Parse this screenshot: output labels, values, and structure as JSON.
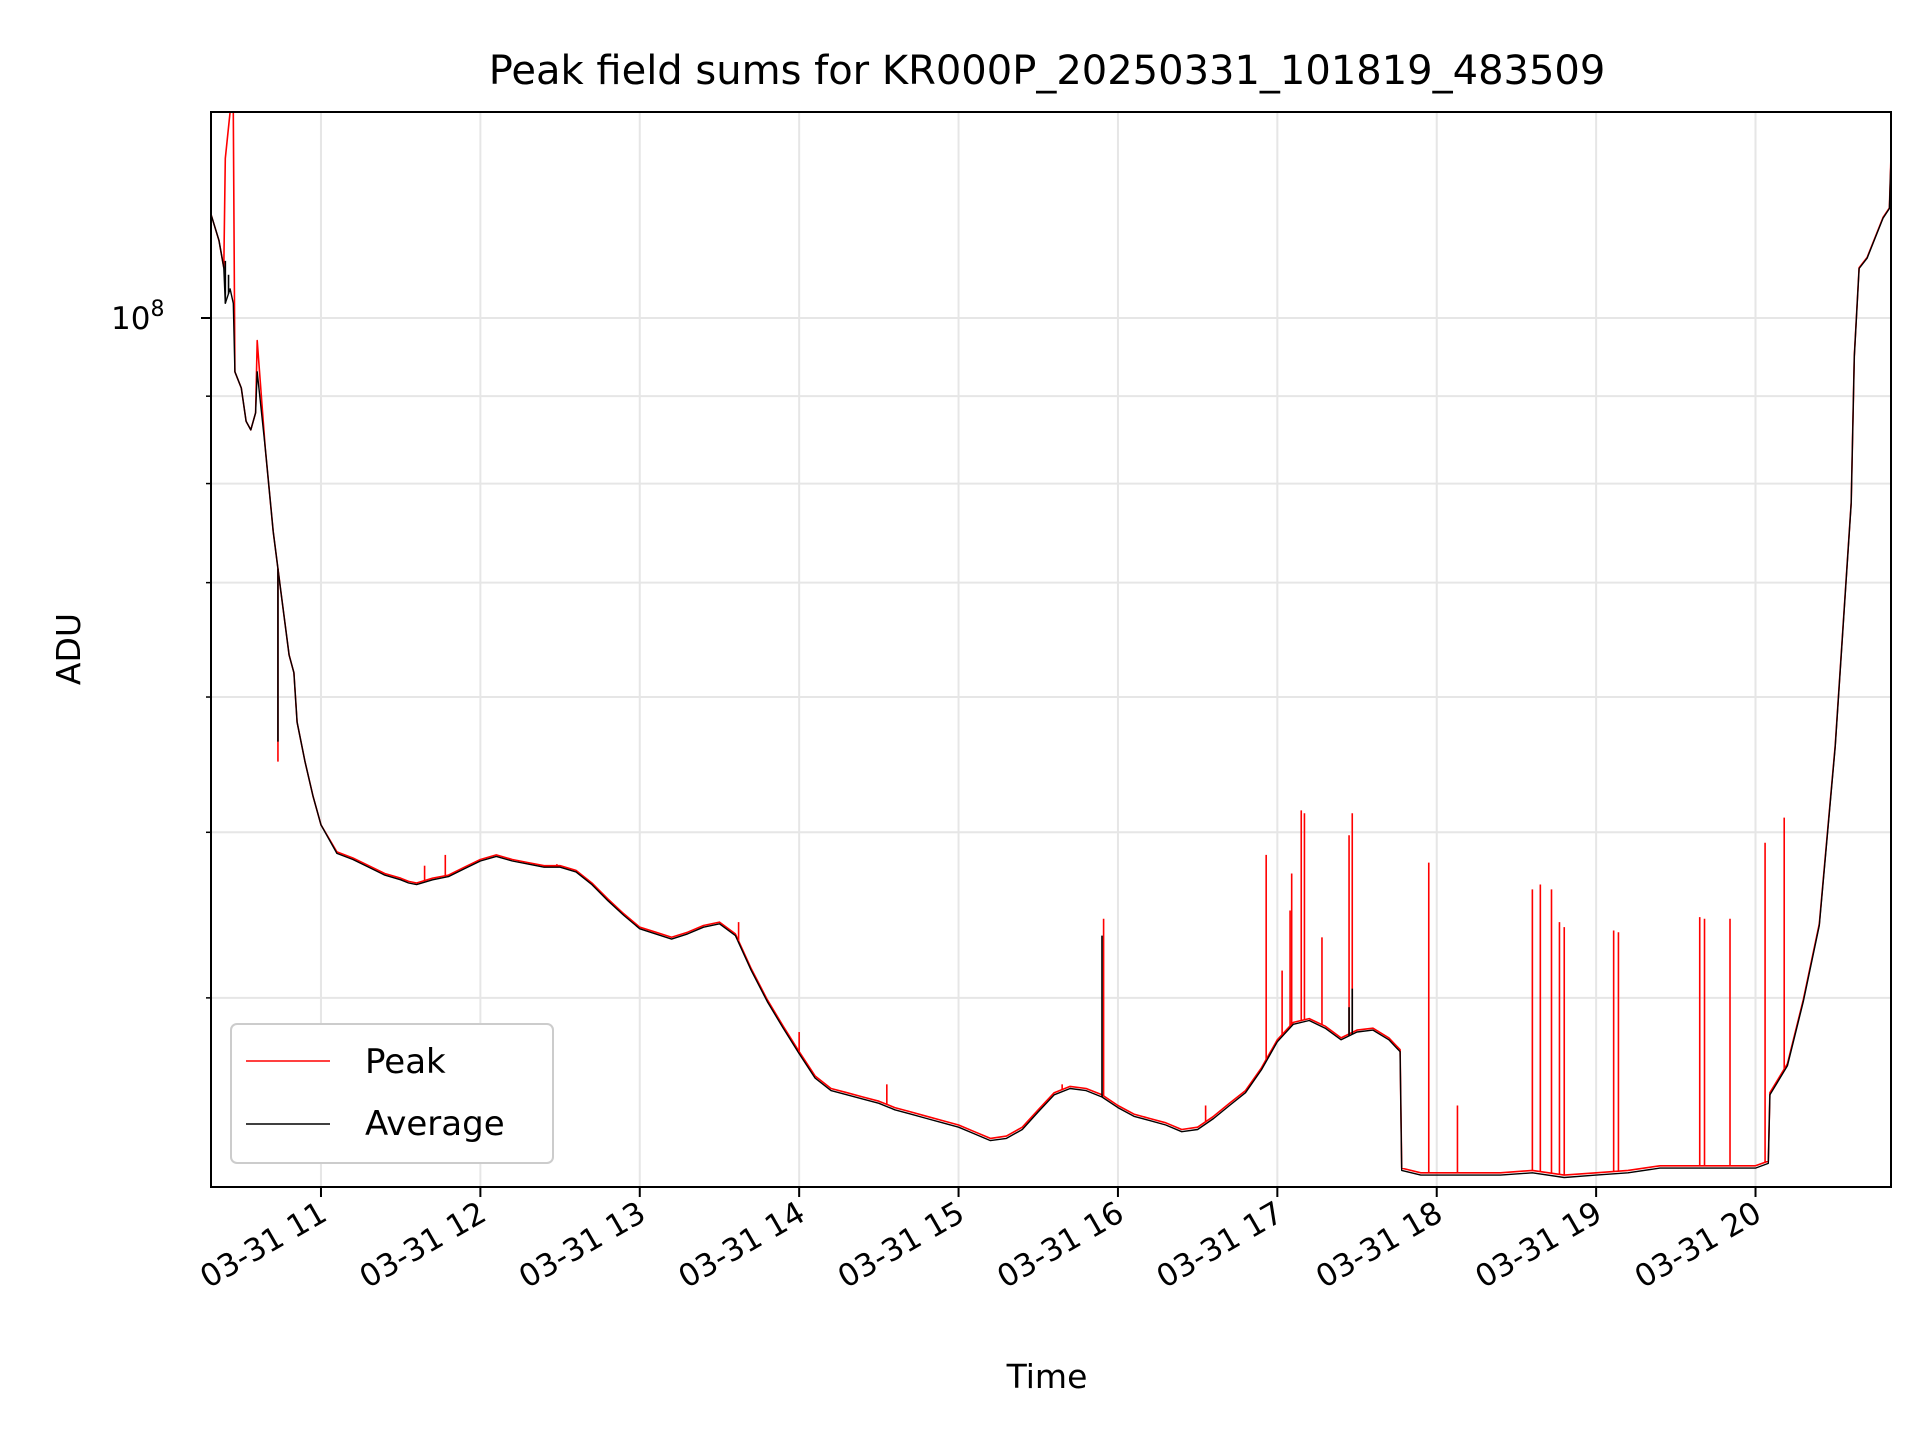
{
  "chart_data": {
    "type": "line",
    "title": "Peak field sums for KR000P_20250331_101819_483509",
    "xlabel": "Time",
    "ylabel": "ADU",
    "y_scale": "log",
    "y_major_tick": {
      "value": 100000000,
      "label_base": "10",
      "label_exponent": "8"
    },
    "ylim": [
      31000000,
      132000000
    ],
    "x_unit": "hours since 2025-03-31 00:00",
    "xlim": [
      10.31,
      20.85
    ],
    "x_ticks": [
      {
        "value": 11,
        "label": "03-31 11"
      },
      {
        "value": 12,
        "label": "03-31 12"
      },
      {
        "value": 13,
        "label": "03-31 13"
      },
      {
        "value": 14,
        "label": "03-31 14"
      },
      {
        "value": 15,
        "label": "03-31 15"
      },
      {
        "value": 16,
        "label": "03-31 16"
      },
      {
        "value": 17,
        "label": "03-31 17"
      },
      {
        "value": 18,
        "label": "03-31 18"
      },
      {
        "value": 19,
        "label": "03-31 19"
      },
      {
        "value": 20,
        "label": "03-31 20"
      }
    ],
    "grid": true,
    "legend_position": "lower-left",
    "series": [
      {
        "name": "Peak",
        "color": "#ff0000",
        "points": [
          [
            10.31,
            115000000
          ],
          [
            10.36,
            111000000
          ],
          [
            10.39,
            107000000
          ],
          [
            10.4,
            124000000
          ],
          [
            10.43,
            132000000
          ],
          [
            10.45,
            132000000
          ],
          [
            10.46,
            93000000
          ],
          [
            10.5,
            91000000
          ],
          [
            10.53,
            87000000
          ],
          [
            10.56,
            86000000
          ],
          [
            10.59,
            88000000
          ],
          [
            10.6,
            97000000
          ],
          [
            10.65,
            84000000
          ],
          [
            10.7,
            75000000
          ],
          [
            10.75,
            69000000
          ],
          [
            10.8,
            63500000
          ],
          [
            10.83,
            62000000
          ],
          [
            10.85,
            58000000
          ],
          [
            10.9,
            55000000
          ],
          [
            10.95,
            52500000
          ],
          [
            11.0,
            50500000
          ],
          [
            11.1,
            48700000
          ],
          [
            11.2,
            48300000
          ],
          [
            11.3,
            47800000
          ],
          [
            11.4,
            47300000
          ],
          [
            11.5,
            47000000
          ],
          [
            11.55,
            46800000
          ],
          [
            11.6,
            46700000
          ],
          [
            11.7,
            47000000
          ],
          [
            11.8,
            47200000
          ],
          [
            11.9,
            47700000
          ],
          [
            12.0,
            48200000
          ],
          [
            12.1,
            48500000
          ],
          [
            12.2,
            48200000
          ],
          [
            12.3,
            48000000
          ],
          [
            12.4,
            47800000
          ],
          [
            12.5,
            47800000
          ],
          [
            12.6,
            47500000
          ],
          [
            12.7,
            46700000
          ],
          [
            12.8,
            45700000
          ],
          [
            12.9,
            44800000
          ],
          [
            13.0,
            44000000
          ],
          [
            13.1,
            43700000
          ],
          [
            13.2,
            43400000
          ],
          [
            13.3,
            43700000
          ],
          [
            13.4,
            44100000
          ],
          [
            13.5,
            44300000
          ],
          [
            13.6,
            43600000
          ],
          [
            13.7,
            41600000
          ],
          [
            13.8,
            39900000
          ],
          [
            13.9,
            38500000
          ],
          [
            14.0,
            37200000
          ],
          [
            14.1,
            36000000
          ],
          [
            14.2,
            35400000
          ],
          [
            14.3,
            35200000
          ],
          [
            14.4,
            35000000
          ],
          [
            14.5,
            34800000
          ],
          [
            14.6,
            34500000
          ],
          [
            14.7,
            34300000
          ],
          [
            14.8,
            34100000
          ],
          [
            14.9,
            33900000
          ],
          [
            15.0,
            33700000
          ],
          [
            15.1,
            33400000
          ],
          [
            15.2,
            33100000
          ],
          [
            15.3,
            33200000
          ],
          [
            15.4,
            33600000
          ],
          [
            15.5,
            34400000
          ],
          [
            15.6,
            35200000
          ],
          [
            15.7,
            35500000
          ],
          [
            15.8,
            35400000
          ],
          [
            15.9,
            35100000
          ],
          [
            16.0,
            34600000
          ],
          [
            16.1,
            34200000
          ],
          [
            16.2,
            34000000
          ],
          [
            16.3,
            33800000
          ],
          [
            16.4,
            33500000
          ],
          [
            16.5,
            33600000
          ],
          [
            16.6,
            34100000
          ],
          [
            16.7,
            34700000
          ],
          [
            16.8,
            35300000
          ],
          [
            16.9,
            36400000
          ],
          [
            17.0,
            37800000
          ],
          [
            17.1,
            38700000
          ],
          [
            17.2,
            38900000
          ],
          [
            17.3,
            38500000
          ],
          [
            17.4,
            37900000
          ],
          [
            17.5,
            38300000
          ],
          [
            17.6,
            38400000
          ],
          [
            17.7,
            37900000
          ],
          [
            17.77,
            37300000
          ],
          [
            17.78,
            31800000
          ],
          [
            17.9,
            31600000
          ],
          [
            18.0,
            31600000
          ],
          [
            18.2,
            31600000
          ],
          [
            18.4,
            31600000
          ],
          [
            18.6,
            31700000
          ],
          [
            18.8,
            31500000
          ],
          [
            19.0,
            31600000
          ],
          [
            19.2,
            31700000
          ],
          [
            19.4,
            31900000
          ],
          [
            19.6,
            31900000
          ],
          [
            19.8,
            31900000
          ],
          [
            20.0,
            31900000
          ],
          [
            20.08,
            32100000
          ],
          [
            20.09,
            35200000
          ],
          [
            20.2,
            36600000
          ],
          [
            20.3,
            39900000
          ],
          [
            20.4,
            44200000
          ],
          [
            20.5,
            56200000
          ],
          [
            20.6,
            78000000
          ],
          [
            20.62,
            95000000
          ],
          [
            20.65,
            107000000
          ],
          [
            20.7,
            108500000
          ],
          [
            20.8,
            114500000
          ],
          [
            20.84,
            116000000
          ],
          [
            20.85,
            124500000
          ]
        ]
      },
      {
        "name": "Average",
        "color": "#000000",
        "points": [
          [
            10.31,
            115000000
          ],
          [
            10.36,
            111000000
          ],
          [
            10.39,
            107000000
          ],
          [
            10.4,
            102000000
          ],
          [
            10.43,
            104000000
          ],
          [
            10.45,
            102000000
          ],
          [
            10.46,
            93000000
          ],
          [
            10.5,
            91000000
          ],
          [
            10.53,
            87000000
          ],
          [
            10.56,
            86000000
          ],
          [
            10.59,
            88000000
          ],
          [
            10.6,
            93000000
          ],
          [
            10.65,
            84000000
          ],
          [
            10.7,
            75000000
          ],
          [
            10.75,
            69000000
          ],
          [
            10.8,
            63500000
          ],
          [
            10.83,
            62000000
          ],
          [
            10.85,
            58000000
          ],
          [
            10.9,
            55000000
          ],
          [
            10.95,
            52500000
          ],
          [
            11.0,
            50500000
          ],
          [
            11.1,
            48600000
          ],
          [
            11.2,
            48200000
          ],
          [
            11.3,
            47700000
          ],
          [
            11.4,
            47200000
          ],
          [
            11.5,
            46900000
          ],
          [
            11.55,
            46700000
          ],
          [
            11.6,
            46600000
          ],
          [
            11.7,
            46900000
          ],
          [
            11.8,
            47100000
          ],
          [
            11.9,
            47600000
          ],
          [
            12.0,
            48100000
          ],
          [
            12.1,
            48400000
          ],
          [
            12.2,
            48100000
          ],
          [
            12.3,
            47900000
          ],
          [
            12.4,
            47700000
          ],
          [
            12.5,
            47700000
          ],
          [
            12.6,
            47400000
          ],
          [
            12.7,
            46600000
          ],
          [
            12.8,
            45600000
          ],
          [
            12.9,
            44700000
          ],
          [
            13.0,
            43900000
          ],
          [
            13.1,
            43600000
          ],
          [
            13.2,
            43300000
          ],
          [
            13.3,
            43600000
          ],
          [
            13.4,
            44000000
          ],
          [
            13.5,
            44200000
          ],
          [
            13.6,
            43500000
          ],
          [
            13.7,
            41500000
          ],
          [
            13.8,
            39800000
          ],
          [
            13.9,
            38400000
          ],
          [
            14.0,
            37100000
          ],
          [
            14.1,
            35900000
          ],
          [
            14.2,
            35300000
          ],
          [
            14.3,
            35100000
          ],
          [
            14.4,
            34900000
          ],
          [
            14.5,
            34700000
          ],
          [
            14.6,
            34400000
          ],
          [
            14.7,
            34200000
          ],
          [
            14.8,
            34000000
          ],
          [
            14.9,
            33800000
          ],
          [
            15.0,
            33600000
          ],
          [
            15.1,
            33300000
          ],
          [
            15.2,
            33000000
          ],
          [
            15.3,
            33100000
          ],
          [
            15.4,
            33500000
          ],
          [
            15.5,
            34300000
          ],
          [
            15.6,
            35100000
          ],
          [
            15.7,
            35400000
          ],
          [
            15.8,
            35300000
          ],
          [
            15.9,
            35000000
          ],
          [
            16.0,
            34500000
          ],
          [
            16.1,
            34100000
          ],
          [
            16.2,
            33900000
          ],
          [
            16.3,
            33700000
          ],
          [
            16.4,
            33400000
          ],
          [
            16.5,
            33500000
          ],
          [
            16.6,
            34000000
          ],
          [
            16.7,
            34600000
          ],
          [
            16.8,
            35200000
          ],
          [
            16.9,
            36300000
          ],
          [
            17.0,
            37700000
          ],
          [
            17.1,
            38600000
          ],
          [
            17.2,
            38800000
          ],
          [
            17.3,
            38400000
          ],
          [
            17.4,
            37800000
          ],
          [
            17.5,
            38200000
          ],
          [
            17.6,
            38300000
          ],
          [
            17.7,
            37800000
          ],
          [
            17.77,
            37200000
          ],
          [
            17.78,
            31700000
          ],
          [
            17.9,
            31500000
          ],
          [
            18.0,
            31500000
          ],
          [
            18.2,
            31500000
          ],
          [
            18.4,
            31500000
          ],
          [
            18.6,
            31600000
          ],
          [
            18.8,
            31400000
          ],
          [
            19.0,
            31500000
          ],
          [
            19.2,
            31600000
          ],
          [
            19.4,
            31800000
          ],
          [
            19.6,
            31800000
          ],
          [
            19.8,
            31800000
          ],
          [
            20.0,
            31800000
          ],
          [
            20.08,
            32000000
          ],
          [
            20.09,
            35100000
          ],
          [
            20.2,
            36500000
          ],
          [
            20.3,
            39800000
          ],
          [
            20.4,
            44100000
          ],
          [
            20.5,
            56100000
          ],
          [
            20.6,
            77900000
          ],
          [
            20.62,
            94900000
          ],
          [
            20.65,
            106900000
          ],
          [
            20.7,
            108400000
          ],
          [
            20.8,
            114400000
          ],
          [
            20.84,
            115900000
          ],
          [
            20.85,
            124000000
          ]
        ]
      }
    ],
    "spikes": {
      "Peak": [
        [
          10.73,
          55000000
        ],
        [
          11.65,
          47800000
        ],
        [
          11.78,
          48500000
        ],
        [
          12.48,
          47900000
        ],
        [
          13.62,
          44300000
        ],
        [
          14.0,
          38200000
        ],
        [
          14.55,
          35600000
        ],
        [
          15.65,
          35600000
        ],
        [
          15.91,
          44500000
        ],
        [
          16.55,
          34600000
        ],
        [
          16.93,
          48500000
        ],
        [
          17.03,
          41500000
        ],
        [
          17.08,
          45000000
        ],
        [
          17.09,
          47300000
        ],
        [
          17.15,
          51500000
        ],
        [
          17.17,
          51300000
        ],
        [
          17.28,
          43400000
        ],
        [
          17.45,
          49800000
        ],
        [
          17.47,
          51300000
        ],
        [
          17.95,
          48000000
        ],
        [
          18.13,
          34600000
        ],
        [
          18.6,
          46300000
        ],
        [
          18.65,
          46600000
        ],
        [
          18.72,
          46300000
        ],
        [
          18.77,
          44300000
        ],
        [
          18.8,
          44000000
        ],
        [
          19.11,
          43800000
        ],
        [
          19.14,
          43700000
        ],
        [
          19.65,
          44600000
        ],
        [
          19.68,
          44500000
        ],
        [
          19.84,
          44500000
        ],
        [
          20.06,
          49300000
        ],
        [
          20.18,
          51000000
        ]
      ],
      "Average": [
        [
          10.4,
          108000000
        ],
        [
          10.42,
          106000000
        ],
        [
          10.73,
          56500000
        ],
        [
          15.9,
          43500000
        ],
        [
          17.45,
          39500000
        ],
        [
          17.47,
          40500000
        ]
      ]
    }
  },
  "legend": {
    "items": [
      {
        "label": "Peak",
        "color": "#ff0000"
      },
      {
        "label": "Average",
        "color": "#000000"
      }
    ]
  }
}
